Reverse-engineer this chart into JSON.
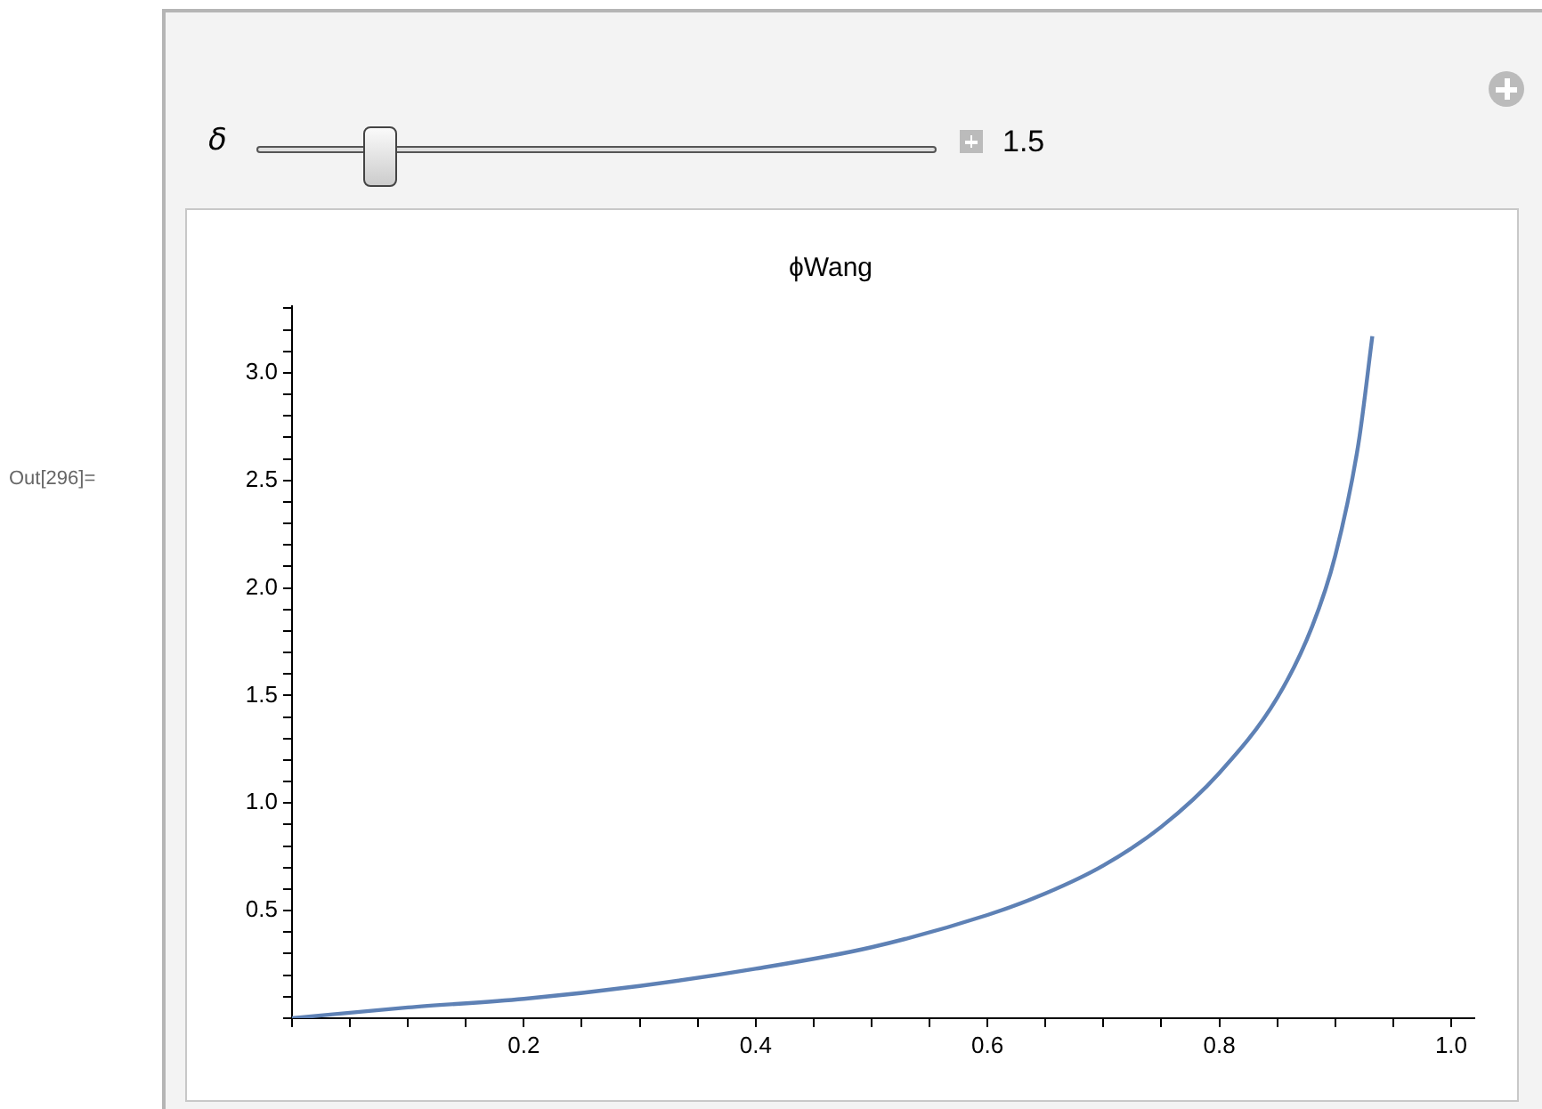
{
  "chart_data": {
    "type": "line",
    "title": "ϕWang",
    "annotations": [
      "Out[296]=",
      "δ",
      "1.5"
    ],
    "x": [
      0,
      0.1,
      0.2,
      0.3,
      0.4,
      0.5,
      0.6,
      0.65,
      0.7,
      0.75,
      0.8,
      0.85,
      0.88,
      0.9,
      0.92,
      0.932
    ],
    "series": [
      {
        "color": "#5e81b5",
        "values": [
          0,
          0.05,
          0.09,
          0.15,
          0.23,
          0.33,
          0.48,
          0.58,
          0.71,
          0.89,
          1.14,
          1.49,
          1.82,
          2.15,
          2.67,
          3.17
        ]
      }
    ],
    "xlim": [
      0,
      1.02
    ],
    "xticks": [
      {
        "value": 0,
        "label": null
      },
      {
        "value": 0.05,
        "label": null
      },
      {
        "value": 0.1,
        "label": null
      },
      {
        "value": 0.15,
        "label": null
      },
      0.2,
      {
        "value": 0.25,
        "label": null
      },
      {
        "value": 0.3,
        "label": null
      },
      {
        "value": 0.35,
        "label": null
      },
      0.4,
      {
        "value": 0.45,
        "label": null
      },
      {
        "value": 0.5,
        "label": null
      },
      {
        "value": 0.55,
        "label": null
      },
      0.6,
      {
        "value": 0.65,
        "label": null
      },
      {
        "value": 0.7,
        "label": null
      },
      {
        "value": 0.75,
        "label": null
      },
      0.8,
      {
        "value": 0.85,
        "label": null
      },
      {
        "value": 0.9,
        "label": null
      },
      {
        "value": 0.95,
        "label": null
      },
      {
        "value": 1.0,
        "label": "1.0"
      }
    ],
    "ylim": [
      0,
      3.31
    ],
    "yticks": [
      {
        "value": 0,
        "label": null
      },
      {
        "value": 0.1,
        "label": null
      },
      {
        "value": 0.2,
        "label": null
      },
      {
        "value": 0.3,
        "label": null
      },
      {
        "value": 0.4,
        "label": null
      },
      0.5,
      {
        "value": 0.6,
        "label": null
      },
      {
        "value": 0.7,
        "label": null
      },
      {
        "value": 0.8,
        "label": null
      },
      {
        "value": 0.9,
        "label": null
      },
      {
        "value": 1.0,
        "label": "1.0"
      },
      {
        "value": 1.1,
        "label": null
      },
      {
        "value": 1.2,
        "label": null
      },
      {
        "value": 1.3,
        "label": null
      },
      {
        "value": 1.4,
        "label": null
      },
      1.5,
      {
        "value": 1.6,
        "label": null
      },
      {
        "value": 1.7,
        "label": null
      },
      {
        "value": 1.8,
        "label": null
      },
      {
        "value": 1.9,
        "label": null
      },
      {
        "value": 2.0,
        "label": "2.0"
      },
      {
        "value": 2.1,
        "label": null
      },
      {
        "value": 2.2,
        "label": null
      },
      {
        "value": 2.3,
        "label": null
      },
      {
        "value": 2.4,
        "label": null
      },
      2.5,
      {
        "value": 2.6,
        "label": null
      },
      {
        "value": 2.7,
        "label": null
      },
      {
        "value": 2.8,
        "label": null
      },
      {
        "value": 2.9,
        "label": null
      },
      {
        "value": 3.0,
        "label": "3.0"
      },
      {
        "value": 3.1,
        "label": null
      },
      {
        "value": 3.2,
        "label": null
      },
      {
        "value": 3.3,
        "label": null
      }
    ],
    "grid": false,
    "legend": false,
    "marker": "none",
    "line_style": "solid"
  }
}
